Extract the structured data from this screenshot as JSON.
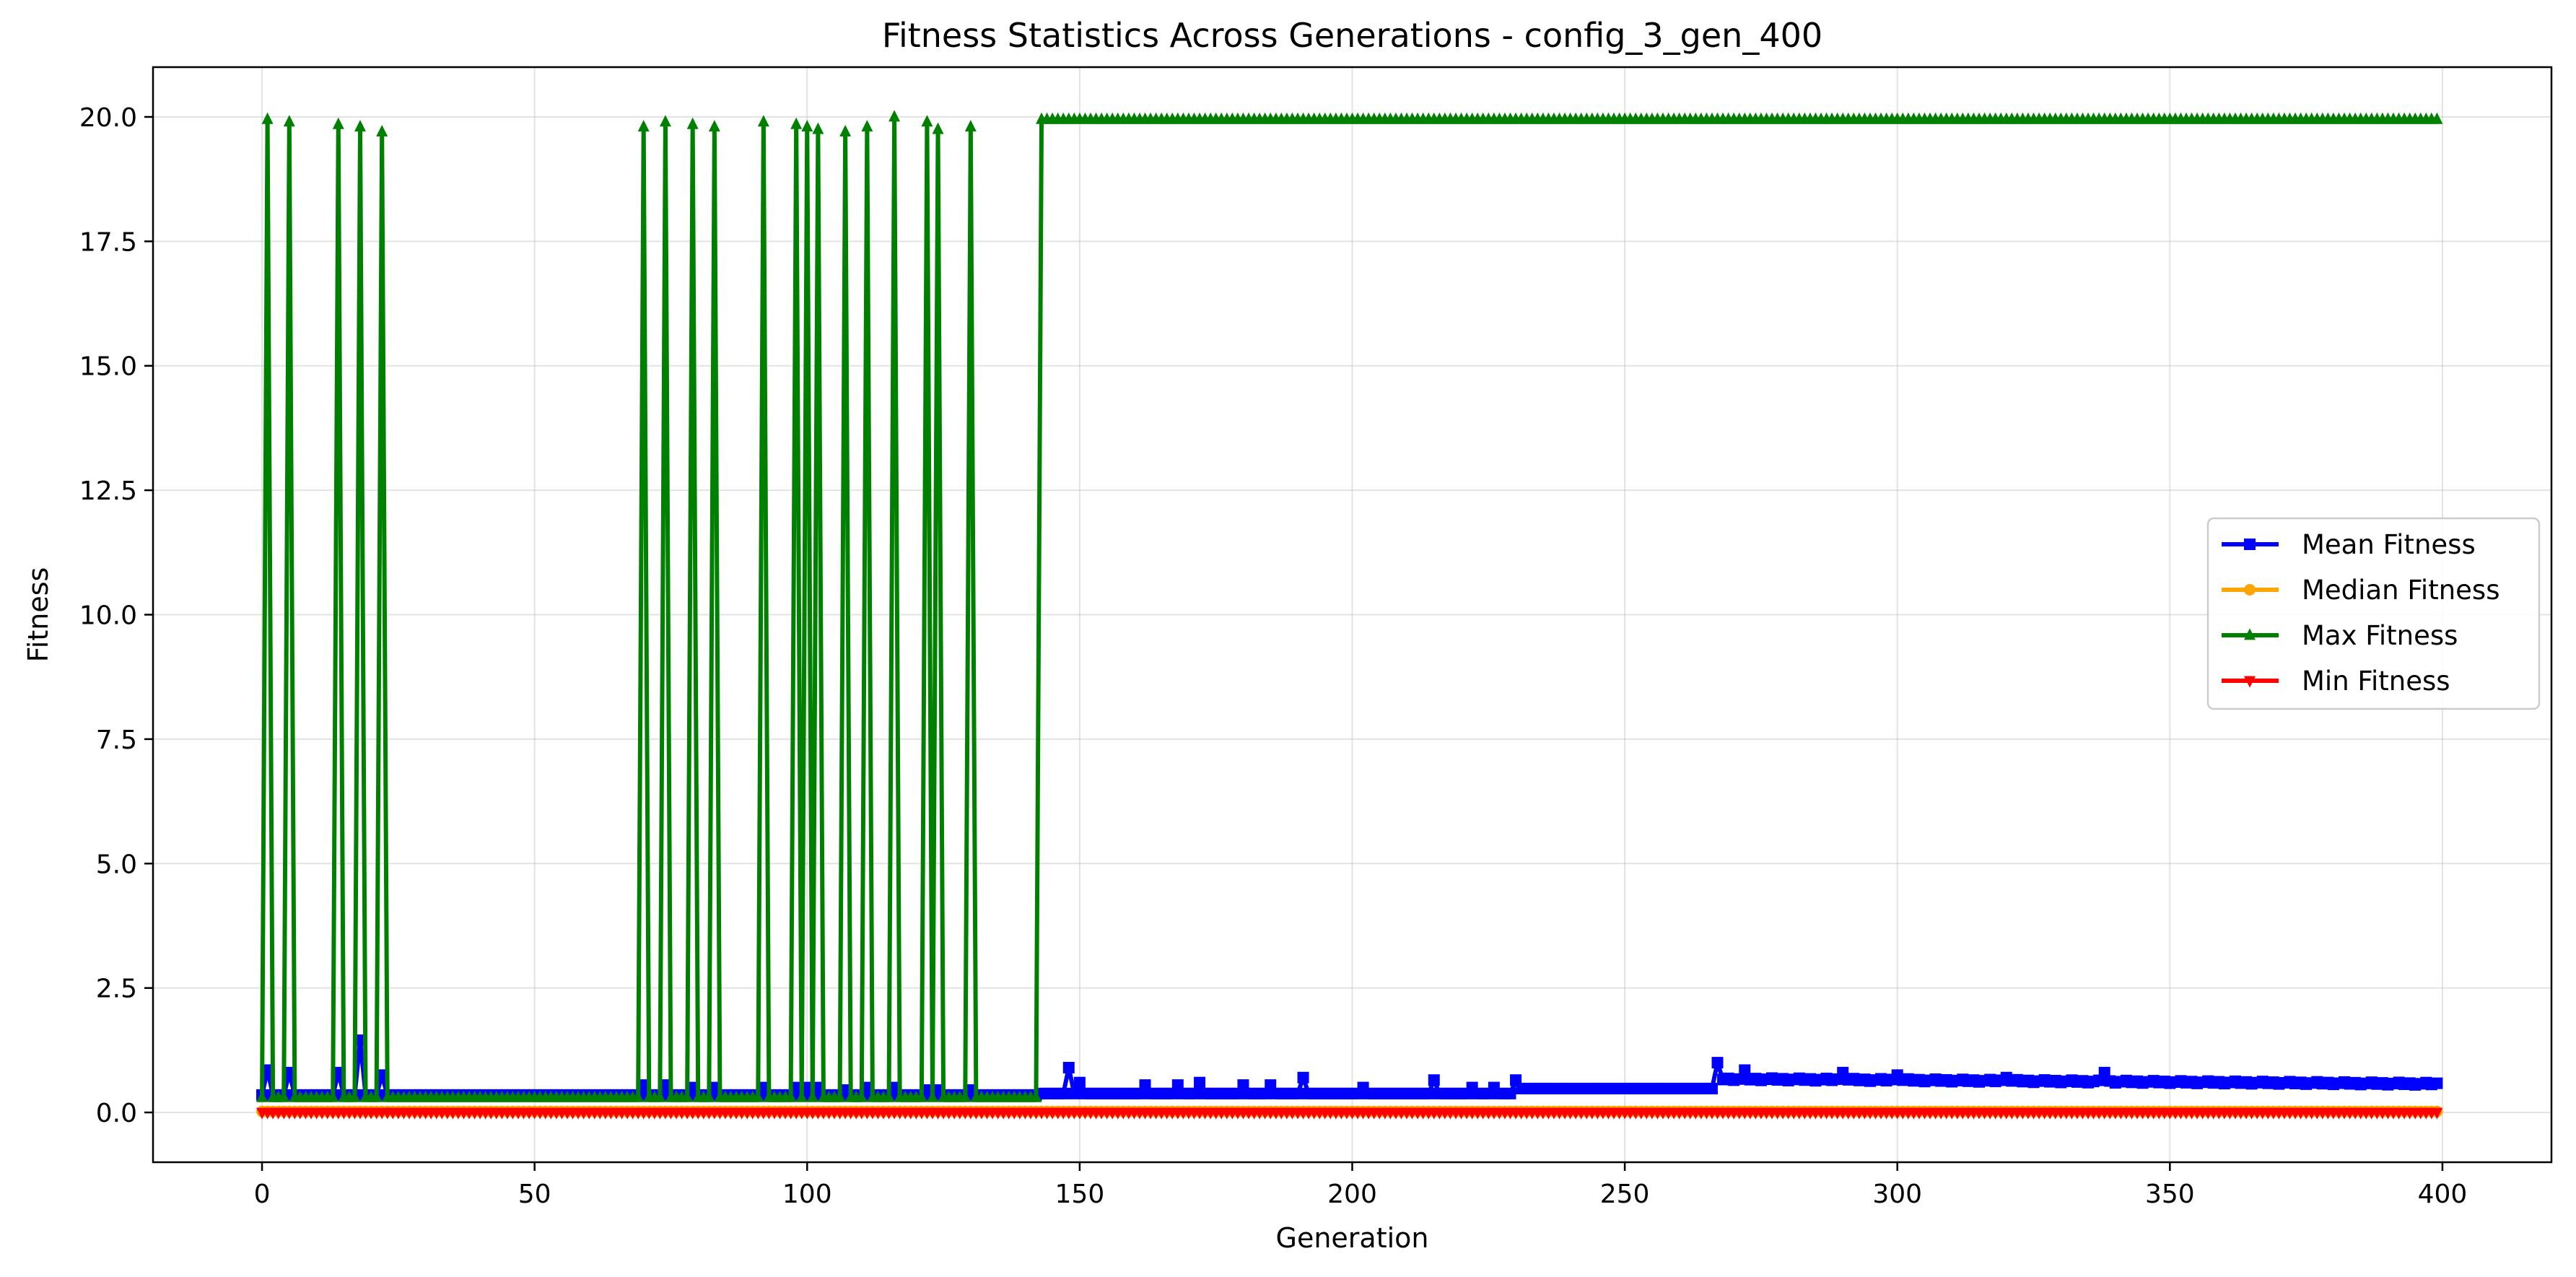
{
  "chart_data": {
    "type": "line",
    "title": "Fitness Statistics Across Generations - config_3_gen_400",
    "xlabel": "Generation",
    "ylabel": "Fitness",
    "xlim": [
      -20,
      420
    ],
    "ylim": [
      -1.0,
      21.0
    ],
    "xticks": [
      0,
      50,
      100,
      150,
      200,
      250,
      300,
      350,
      400
    ],
    "yticks": [
      0.0,
      2.5,
      5.0,
      7.5,
      10.0,
      12.5,
      15.0,
      17.5,
      20.0
    ],
    "xtick_labels": [
      "0",
      "50",
      "100",
      "150",
      "200",
      "250",
      "300",
      "350",
      "400"
    ],
    "ytick_labels": [
      "0.0",
      "2.5",
      "5.0",
      "7.5",
      "10.0",
      "12.5",
      "15.0",
      "17.5",
      "20.0"
    ],
    "grid": true,
    "legend_position": "center-right",
    "x_start": 0,
    "x_end": 399,
    "series": [
      {
        "name": "Mean Fitness",
        "color": "#0000ff",
        "marker": "square",
        "base_early": 0.35,
        "base_late_start": 0.38,
        "base_late_end": 0.55,
        "mid_level": 0.65,
        "spikes": [
          [
            1,
            0.85
          ],
          [
            5,
            0.8
          ],
          [
            14,
            0.8
          ],
          [
            18,
            1.45
          ],
          [
            22,
            0.75
          ],
          [
            70,
            0.55
          ],
          [
            74,
            0.55
          ],
          [
            79,
            0.5
          ],
          [
            83,
            0.5
          ],
          [
            92,
            0.5
          ],
          [
            98,
            0.5
          ],
          [
            100,
            0.5
          ],
          [
            102,
            0.5
          ],
          [
            107,
            0.45
          ],
          [
            111,
            0.5
          ],
          [
            116,
            0.5
          ],
          [
            122,
            0.45
          ],
          [
            124,
            0.45
          ],
          [
            130,
            0.45
          ],
          [
            148,
            0.9
          ],
          [
            150,
            0.6
          ],
          [
            162,
            0.55
          ],
          [
            168,
            0.55
          ],
          [
            172,
            0.6
          ],
          [
            180,
            0.55
          ],
          [
            185,
            0.55
          ],
          [
            191,
            0.7
          ],
          [
            202,
            0.5
          ],
          [
            215,
            0.65
          ],
          [
            222,
            0.5
          ],
          [
            226,
            0.5
          ],
          [
            230,
            0.65
          ],
          [
            267,
            1.0
          ],
          [
            272,
            0.85
          ],
          [
            290,
            0.8
          ],
          [
            300,
            0.75
          ],
          [
            320,
            0.7
          ],
          [
            338,
            0.8
          ]
        ]
      },
      {
        "name": "Median Fitness",
        "color": "#ffa500",
        "marker": "circle",
        "value": 0.02
      },
      {
        "name": "Max Fitness",
        "color": "#008000",
        "marker": "triangle-up",
        "base_early": 0.3,
        "plateau_start": 143,
        "plateau_value": 19.95,
        "spikes": [
          [
            1,
            19.95
          ],
          [
            5,
            19.9
          ],
          [
            14,
            19.85
          ],
          [
            18,
            19.8
          ],
          [
            22,
            19.7
          ],
          [
            70,
            19.8
          ],
          [
            74,
            19.9
          ],
          [
            79,
            19.85
          ],
          [
            83,
            19.8
          ],
          [
            92,
            19.9
          ],
          [
            98,
            19.85
          ],
          [
            100,
            19.8
          ],
          [
            102,
            19.75
          ],
          [
            107,
            19.7
          ],
          [
            111,
            19.8
          ],
          [
            116,
            20.0
          ],
          [
            122,
            19.9
          ],
          [
            124,
            19.75
          ],
          [
            130,
            19.8
          ]
        ]
      },
      {
        "name": "Min Fitness",
        "color": "#ff0000",
        "marker": "triangle-down",
        "value": 0.0
      }
    ]
  }
}
